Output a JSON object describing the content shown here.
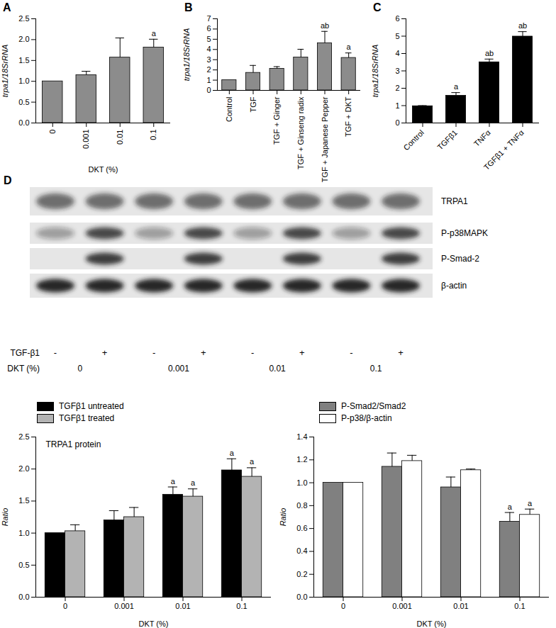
{
  "chart_data": [
    {
      "type": "bar",
      "title": "A",
      "categories": [
        "0",
        "0.001",
        "0.01",
        "0.1"
      ],
      "values": [
        1.0,
        1.15,
        1.57,
        1.81
      ],
      "errors": [
        0,
        0.09,
        0.47,
        0.2
      ],
      "significance": [
        null,
        null,
        null,
        "a"
      ],
      "color": "#8c8c8c",
      "x_label": "DKT (%)",
      "y_label": "trpa1/18SrRNA",
      "ylim": [
        0,
        2.5
      ],
      "yticks": [
        {
          "value": 0,
          "label": "0.0"
        },
        0.5,
        {
          "value": 1,
          "label": "1.0"
        },
        1.5,
        {
          "value": 2,
          "label": "2.0"
        },
        2.5
      ]
    },
    {
      "type": "bar",
      "title": "B",
      "categories": [
        "Control",
        "TGF",
        "TGF + Ginger",
        "TGF + Ginseng radix",
        "TGF + Japanese Pepper",
        "TGF + DKT"
      ],
      "values": [
        1.0,
        1.72,
        2.12,
        3.22,
        4.62,
        3.18
      ],
      "errors": [
        0,
        0.72,
        0.2,
        0.8,
        1.15,
        0.48
      ],
      "significance": [
        null,
        null,
        null,
        null,
        "ab",
        "a"
      ],
      "color": "#8c8c8c",
      "y_label": "trpa1/18SrRNA",
      "ylim": [
        0,
        7
      ],
      "yticks": [
        0,
        1,
        2,
        3,
        4,
        5,
        6,
        7
      ]
    },
    {
      "type": "bar",
      "title": "C",
      "categories": [
        "Control",
        "TGFβ1",
        "TNFα",
        "TGFβ1 + TNFα"
      ],
      "values": [
        0.97,
        1.57,
        3.5,
        4.98
      ],
      "errors": [
        0.03,
        0.18,
        0.18,
        0.28
      ],
      "significance": [
        null,
        "a",
        "ab",
        "ab"
      ],
      "color": "#000000",
      "y_label": "trpa1/18SrRNA",
      "ylim": [
        0,
        6
      ],
      "yticks": [
        0,
        1,
        2,
        3,
        4,
        5,
        6
      ]
    },
    {
      "type": "bar",
      "title": "TRPA1 protein",
      "categories": [
        "0",
        "0.001",
        "0.01",
        "0.1"
      ],
      "series": [
        {
          "name": "TGFβ1 untreated",
          "color": "#000000",
          "values": [
            1.0,
            1.2,
            1.6,
            1.98
          ],
          "errors": [
            0,
            0.15,
            0.12,
            0.18
          ],
          "significance": [
            null,
            null,
            "a",
            "a"
          ]
        },
        {
          "name": "TGFβ1 treated",
          "color": "#b3b3b3",
          "values": [
            1.03,
            1.25,
            1.57,
            1.88
          ],
          "errors": [
            0.1,
            0.15,
            0.12,
            0.14
          ],
          "significance": [
            null,
            null,
            "a",
            "a"
          ]
        }
      ],
      "x_label": "DKT (%)",
      "y_label": "Ratio",
      "legend": "top",
      "ylim": [
        0,
        2.5
      ],
      "yticks": [
        {
          "value": 0,
          "label": "0.0"
        },
        0.5,
        {
          "value": 1,
          "label": "1.0"
        },
        1.5,
        {
          "value": 2,
          "label": "2.0"
        },
        2.5
      ]
    },
    {
      "type": "bar",
      "categories": [
        "0",
        "0.001",
        "0.01",
        "0.1"
      ],
      "series": [
        {
          "name": "P-Smad2/Smad2",
          "color": "#808080",
          "values": [
            1.0,
            1.14,
            0.96,
            0.66
          ],
          "errors": [
            0,
            0.12,
            0.09,
            0.08
          ],
          "significance": [
            null,
            null,
            null,
            "a"
          ]
        },
        {
          "name": "P-p38/β-actin",
          "color": "#ffffff",
          "values": [
            1.0,
            1.19,
            1.11,
            0.72
          ],
          "errors": [
            0,
            0.05,
            0.01,
            0.05
          ],
          "significance": [
            null,
            null,
            null,
            "a"
          ]
        }
      ],
      "x_label": "DKT (%)",
      "y_label": "Ratio",
      "legend": "top",
      "ylim": [
        0,
        1.4
      ],
      "yticks": [
        {
          "value": 0,
          "label": "0.0"
        },
        0.2,
        0.4,
        0.6,
        0.8,
        {
          "value": 1,
          "label": "1.0"
        },
        1.2,
        1.4
      ]
    }
  ],
  "blot": {
    "label": "D",
    "rows": [
      "TRPA1",
      "P-p38MAPK",
      "P-Smad-2",
      "β-actin"
    ],
    "treatment_label": "TGF-β1",
    "treatment": [
      "-",
      "+",
      "-",
      "+",
      "-",
      "+",
      "-",
      "+"
    ],
    "dose_label": "DKT (%)",
    "doses": [
      "0",
      "0.001",
      "0.01",
      "0.1"
    ]
  }
}
